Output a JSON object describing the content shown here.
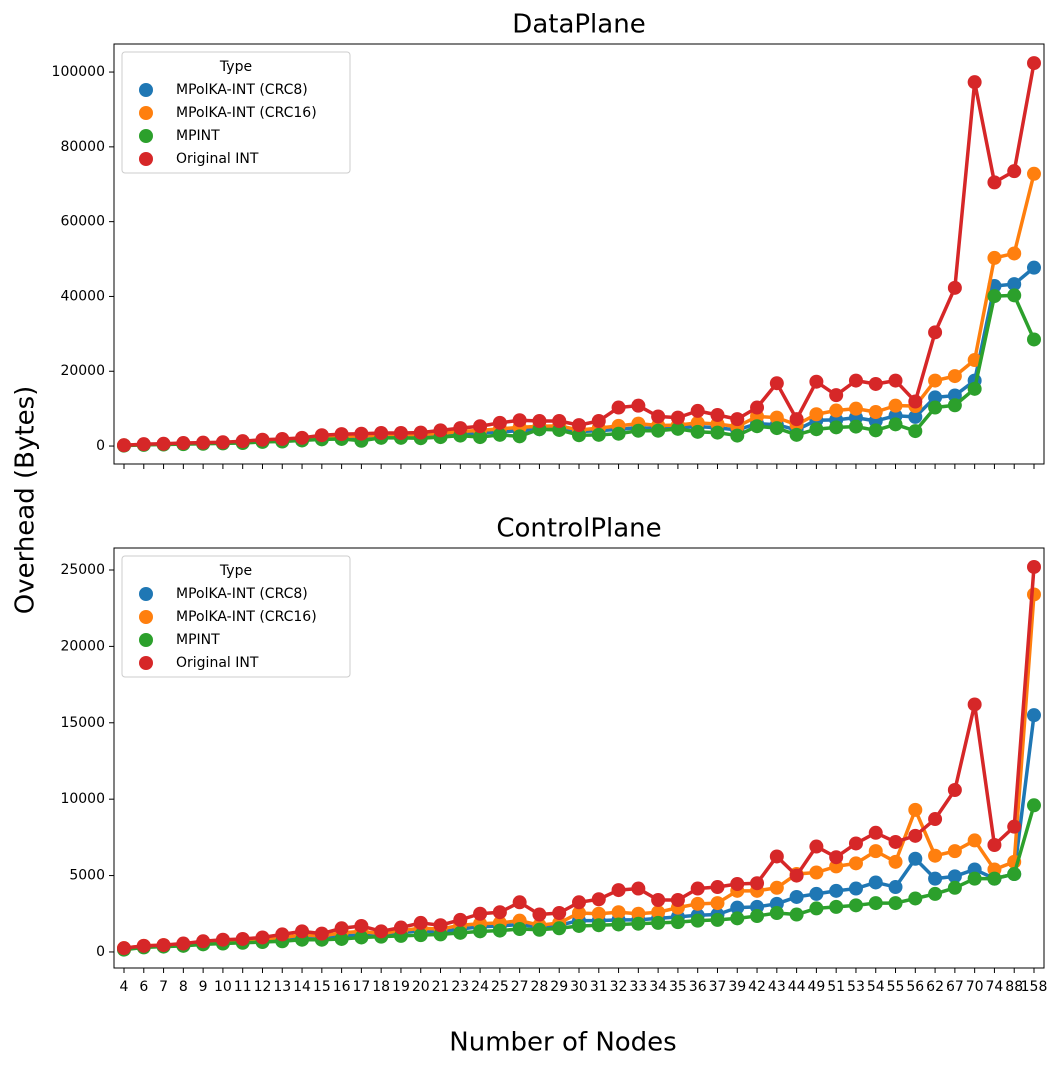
{
  "figure": {
    "ylabel": "Overhead (Bytes)",
    "xlabel": "Number of Nodes"
  },
  "chart_data": [
    {
      "type": "line",
      "title": "DataPlane",
      "legend_title": "Type",
      "legend": "upper left",
      "ylim": [
        -4800,
        107500
      ],
      "yticks": [
        0,
        20000,
        40000,
        60000,
        80000,
        100000
      ],
      "series": [
        {
          "name": "MPolKA-INT (CRC8)",
          "color": "#1f77b4",
          "values": [
            200,
            400,
            500,
            600,
            700,
            800,
            1000,
            1300,
            1400,
            1700,
            2100,
            2300,
            2300,
            2500,
            2600,
            2600,
            2900,
            3300,
            3500,
            3800,
            4100,
            4500,
            4600,
            3900,
            4100,
            4500,
            4900,
            4700,
            4900,
            5200,
            4900,
            4300,
            6000,
            5700,
            4300,
            6900,
            7000,
            7600,
            6700,
            8100,
            7800,
            13000,
            13500,
            17500,
            42800,
            43300,
            47700
          ]
        },
        {
          "name": "MPolKA-INT (CRC16)",
          "color": "#ff7f0e",
          "values": [
            200,
            400,
            500,
            700,
            800,
            900,
            1100,
            1400,
            1600,
            1900,
            2400,
            2600,
            2700,
            2900,
            3000,
            3100,
            3400,
            3900,
            4200,
            4600,
            5000,
            5300,
            5400,
            4300,
            4800,
            5400,
            6000,
            5500,
            5600,
            6200,
            5900,
            5200,
            7900,
            7600,
            5700,
            8500,
            9500,
            10000,
            9100,
            10800,
            10700,
            17500,
            18700,
            23000,
            50300,
            51500,
            72800
          ]
        },
        {
          "name": "MPINT",
          "color": "#2ca02c",
          "values": [
            100,
            300,
            400,
            500,
            600,
            700,
            800,
            1100,
            1200,
            1500,
            1800,
            1900,
            1400,
            2200,
            2200,
            2100,
            2400,
            2800,
            2400,
            3000,
            2600,
            4500,
            4300,
            2900,
            3000,
            3300,
            4100,
            4100,
            4600,
            3800,
            3600,
            2800,
            5300,
            4800,
            3000,
            4500,
            5000,
            5200,
            4200,
            5800,
            4000,
            10300,
            10900,
            15300,
            40100,
            40300,
            28500
          ]
        },
        {
          "name": "Original INT",
          "color": "#d62728",
          "values": [
            200,
            500,
            600,
            800,
            900,
            1000,
            1300,
            1700,
            1900,
            2200,
            2900,
            3200,
            3300,
            3500,
            3500,
            3600,
            4200,
            4800,
            5300,
            6200,
            6900,
            6700,
            6700,
            5600,
            6700,
            10300,
            10800,
            7900,
            7600,
            9400,
            8300,
            7200,
            10300,
            16800,
            7200,
            17200,
            13600,
            17500,
            16600,
            17500,
            11900,
            30400,
            42300,
            97300,
            70500,
            73500,
            102400
          ]
        }
      ]
    },
    {
      "type": "line",
      "title": "ControlPlane",
      "legend_title": "Type",
      "legend": "upper left",
      "categories": [
        "4",
        "6",
        "7",
        "8",
        "9",
        "10",
        "11",
        "12",
        "13",
        "14",
        "15",
        "16",
        "17",
        "18",
        "19",
        "20",
        "21",
        "23",
        "24",
        "25",
        "27",
        "28",
        "29",
        "30",
        "31",
        "32",
        "33",
        "34",
        "35",
        "36",
        "37",
        "39",
        "42",
        "43",
        "44",
        "49",
        "51",
        "53",
        "54",
        "55",
        "56",
        "62",
        "67",
        "70",
        "74",
        "88",
        "158"
      ],
      "ylim": [
        -1050,
        26440
      ],
      "yticks": [
        0,
        5000,
        10000,
        15000,
        20000,
        25000
      ],
      "series": [
        {
          "name": "MPolKA-INT (CRC8)",
          "color": "#1f77b4",
          "values": [
            200,
            350,
            400,
            450,
            550,
            600,
            650,
            750,
            850,
            950,
            900,
            1050,
            1100,
            1100,
            1250,
            1400,
            1300,
            1500,
            1650,
            1700,
            1800,
            1600,
            1750,
            2050,
            2050,
            2100,
            2100,
            2200,
            2300,
            2400,
            2450,
            2900,
            2950,
            3150,
            3600,
            3800,
            4000,
            4150,
            4550,
            4250,
            6100,
            4800,
            4950,
            5400,
            4800,
            5100,
            15500
          ]
        },
        {
          "name": "MPolKA-INT (CRC16)",
          "color": "#ff7f0e",
          "values": [
            250,
            400,
            450,
            500,
            650,
            700,
            750,
            850,
            950,
            1100,
            1050,
            1250,
            1350,
            1200,
            1400,
            1550,
            1500,
            1750,
            1850,
            1900,
            2050,
            1750,
            1900,
            2550,
            2500,
            2600,
            2500,
            2600,
            2900,
            3150,
            3200,
            4000,
            4000,
            4200,
            5100,
            5200,
            5600,
            5800,
            6600,
            5900,
            9300,
            6300,
            6600,
            7300,
            5400,
            5900,
            23400
          ]
        },
        {
          "name": "MPINT",
          "color": "#2ca02c",
          "values": [
            150,
            300,
            350,
            400,
            500,
            550,
            600,
            650,
            700,
            800,
            800,
            850,
            950,
            1000,
            1050,
            1100,
            1150,
            1250,
            1350,
            1400,
            1500,
            1450,
            1550,
            1700,
            1750,
            1800,
            1850,
            1900,
            1950,
            2050,
            2100,
            2200,
            2350,
            2550,
            2450,
            2850,
            2950,
            3050,
            3200,
            3200,
            3500,
            3800,
            4200,
            4800,
            4800,
            5100,
            9600
          ]
        },
        {
          "name": "Original INT",
          "color": "#d62728",
          "values": [
            250,
            400,
            450,
            550,
            700,
            800,
            850,
            950,
            1150,
            1350,
            1200,
            1550,
            1700,
            1350,
            1600,
            1900,
            1750,
            2100,
            2500,
            2600,
            3250,
            2450,
            2550,
            3250,
            3450,
            4050,
            4150,
            3400,
            3400,
            4150,
            4250,
            4450,
            4500,
            6250,
            5000,
            6900,
            6200,
            7100,
            7800,
            7200,
            7600,
            8700,
            10600,
            16200,
            7000,
            8200,
            25200
          ]
        }
      ]
    }
  ]
}
